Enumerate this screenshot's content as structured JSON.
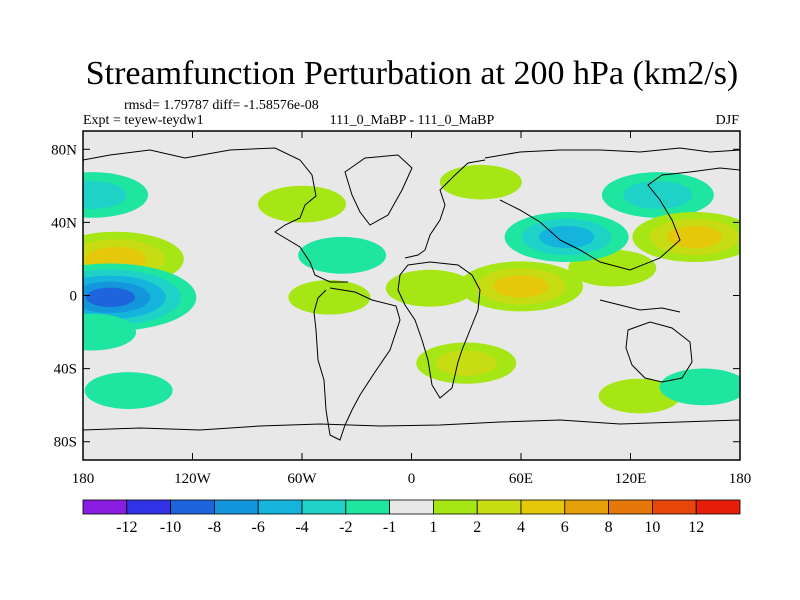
{
  "chart_data": {
    "type": "heatmap",
    "title": "Streamfunction Perturbation at 200 hPa (km2/s)",
    "stats_line": "rmsd= 1.79787 diff= -1.58576e-08",
    "experiment": "Expt = teyew-teydw1",
    "center_label": "111_0_MaBP - 111_0_MaBP",
    "season": "DJF",
    "x_ticks": [
      "180",
      "120W",
      "60W",
      "0",
      "60E",
      "120E",
      "180"
    ],
    "x_tick_values": [
      -180,
      -120,
      -60,
      0,
      60,
      120,
      180
    ],
    "y_ticks": [
      "80N",
      "40N",
      "0",
      "40S",
      "80S"
    ],
    "y_tick_values": [
      80,
      40,
      0,
      -40,
      -80
    ],
    "xlim": [
      -180,
      180
    ],
    "ylim": [
      -90,
      90
    ],
    "colorbar": {
      "labels": [
        "-12",
        "-10",
        "-8",
        "-6",
        "-4",
        "-2",
        "-1",
        "1",
        "2",
        "4",
        "6",
        "8",
        "10",
        "12"
      ],
      "colors": [
        "#8a1ee0",
        "#3232e6",
        "#1e64dc",
        "#1496dc",
        "#14b4dc",
        "#1ed2c8",
        "#1ee6a0",
        "#e8e8e8",
        "#a6e614",
        "#c8dc14",
        "#e6c80a",
        "#e6a00a",
        "#e6780a",
        "#e6460a",
        "#e61e0a"
      ]
    },
    "anomalies": [
      {
        "lon": -162,
        "lat": 20,
        "value": 6
      },
      {
        "lon": -175,
        "lat": 55,
        "value": -4
      },
      {
        "lon": -165,
        "lat": -1,
        "value": -9
      },
      {
        "lon": -175,
        "lat": -20,
        "value": -2
      },
      {
        "lon": -60,
        "lat": 50,
        "value": 2
      },
      {
        "lon": -38,
        "lat": 22,
        "value": -2
      },
      {
        "lon": -45,
        "lat": -1,
        "value": 1.5
      },
      {
        "lon": 10,
        "lat": 4,
        "value": 2
      },
      {
        "lon": 60,
        "lat": 5,
        "value": 5
      },
      {
        "lon": 110,
        "lat": 15,
        "value": 2
      },
      {
        "lon": 38,
        "lat": 62,
        "value": 1.5
      },
      {
        "lon": 85,
        "lat": 32,
        "value": -5
      },
      {
        "lon": 135,
        "lat": 55,
        "value": -4
      },
      {
        "lon": 155,
        "lat": 32,
        "value": 5
      },
      {
        "lon": 30,
        "lat": -37,
        "value": 3
      },
      {
        "lon": 125,
        "lat": -55,
        "value": 1.5
      },
      {
        "lon": 160,
        "lat": -50,
        "value": -2
      },
      {
        "lon": -155,
        "lat": -52,
        "value": -2
      }
    ]
  }
}
